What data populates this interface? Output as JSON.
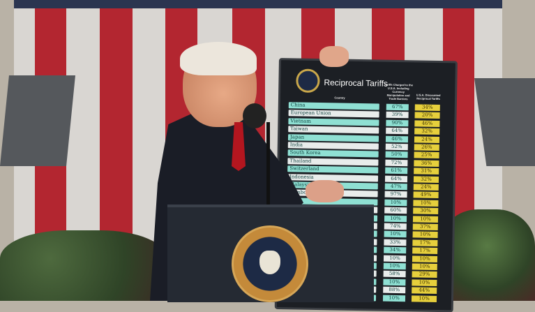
{
  "board": {
    "title": "Reciprocal Tariffs",
    "headers": {
      "country": "Country",
      "charged": "Tariffs Charged to the U.S.A. Including Currency Manipulation and Trade Barriers",
      "reciprocal": "U.S.A. Discounted Reciprocal Tariffs"
    },
    "rows": [
      {
        "country": "China",
        "charged": "67%",
        "reciprocal": "34%"
      },
      {
        "country": "European Union",
        "charged": "39%",
        "reciprocal": "20%"
      },
      {
        "country": "Vietnam",
        "charged": "90%",
        "reciprocal": "46%"
      },
      {
        "country": "Taiwan",
        "charged": "64%",
        "reciprocal": "32%"
      },
      {
        "country": "Japan",
        "charged": "46%",
        "reciprocal": "24%"
      },
      {
        "country": "India",
        "charged": "52%",
        "reciprocal": "26%"
      },
      {
        "country": "South Korea",
        "charged": "50%",
        "reciprocal": "25%"
      },
      {
        "country": "Thailand",
        "charged": "72%",
        "reciprocal": "36%"
      },
      {
        "country": "Switzerland",
        "charged": "61%",
        "reciprocal": "31%"
      },
      {
        "country": "Indonesia",
        "charged": "64%",
        "reciprocal": "32%"
      },
      {
        "country": "Malaysia",
        "charged": "47%",
        "reciprocal": "24%"
      },
      {
        "country": "Cambodia",
        "charged": "97%",
        "reciprocal": "49%"
      },
      {
        "country": "",
        "charged": "10%",
        "reciprocal": "10%"
      },
      {
        "country": "",
        "charged": "60%",
        "reciprocal": "30%"
      },
      {
        "country": "",
        "charged": "10%",
        "reciprocal": "10%"
      },
      {
        "country": "",
        "charged": "74%",
        "reciprocal": "37%"
      },
      {
        "country": "",
        "charged": "10%",
        "reciprocal": "10%"
      },
      {
        "country": "",
        "charged": "33%",
        "reciprocal": "17%"
      },
      {
        "country": "",
        "charged": "34%",
        "reciprocal": "17%"
      },
      {
        "country": "",
        "charged": "10%",
        "reciprocal": "10%"
      },
      {
        "country": "",
        "charged": "10%",
        "reciprocal": "10%"
      },
      {
        "country": "",
        "charged": "58%",
        "reciprocal": "29%"
      },
      {
        "country": "",
        "charged": "10%",
        "reciprocal": "10%"
      },
      {
        "country": "",
        "charged": "88%",
        "reciprocal": "44%"
      },
      {
        "country": "",
        "charged": "10%",
        "reciprocal": "10%"
      }
    ]
  },
  "podium_seal": "SEAL OF THE PRESIDENT OF THE UNITED STATES",
  "colors": {
    "flag_red": "#b32630",
    "teal_row": "#8fe0d3",
    "yellow_cell": "#e6cf3c",
    "board": "#1c1f24"
  }
}
